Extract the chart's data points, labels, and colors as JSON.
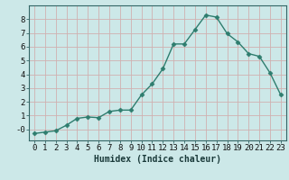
{
  "x": [
    0,
    1,
    2,
    3,
    4,
    5,
    6,
    7,
    8,
    9,
    10,
    11,
    12,
    13,
    14,
    15,
    16,
    17,
    18,
    19,
    20,
    21,
    22,
    23
  ],
  "y": [
    -0.3,
    -0.2,
    -0.1,
    0.3,
    0.8,
    0.9,
    0.85,
    1.3,
    1.4,
    1.4,
    2.5,
    3.3,
    4.4,
    6.2,
    6.2,
    7.25,
    8.3,
    8.15,
    6.95,
    6.35,
    5.5,
    5.3,
    4.1,
    2.5
  ],
  "line_color": "#2e7d6e",
  "marker": "D",
  "marker_size": 2.5,
  "bg_color": "#cce8e8",
  "grid_color_major": "#b0cccc",
  "grid_color_minor": "#c8dede",
  "xlabel": "Humidex (Indice chaleur)",
  "xlabel_fontsize": 7,
  "tick_fontsize": 6.5,
  "ylim": [
    -0.8,
    9.0
  ],
  "xlim": [
    -0.5,
    23.5
  ],
  "yticks": [
    0,
    1,
    2,
    3,
    4,
    5,
    6,
    7,
    8
  ],
  "ytick_labels": [
    "-0",
    "1",
    "2",
    "3",
    "4",
    "5",
    "6",
    "7",
    "8"
  ],
  "xticks": [
    0,
    1,
    2,
    3,
    4,
    5,
    6,
    7,
    8,
    9,
    10,
    11,
    12,
    13,
    14,
    15,
    16,
    17,
    18,
    19,
    20,
    21,
    22,
    23
  ]
}
